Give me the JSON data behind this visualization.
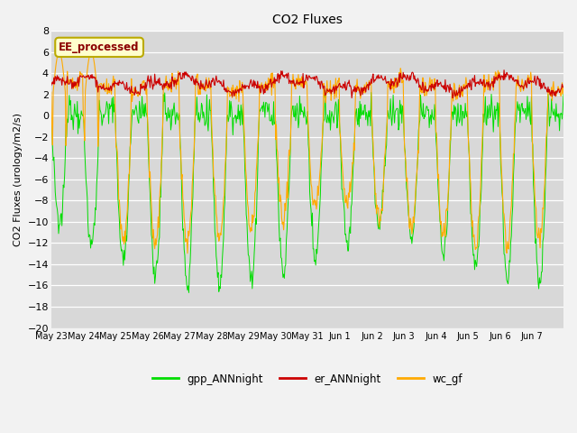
{
  "title": "CO2 Fluxes",
  "ylabel": "CO2 Fluxes (urology/m2/s)",
  "ylim": [
    -20,
    8
  ],
  "yticks": [
    -20,
    -18,
    -16,
    -14,
    -12,
    -10,
    -8,
    -6,
    -4,
    -2,
    0,
    2,
    4,
    6,
    8
  ],
  "bg_color": "#d8d8d8",
  "fig_bg": "#f2f2f2",
  "line_green": "#00dd00",
  "line_red": "#cc0000",
  "line_orange": "#ffaa00",
  "legend_label": "EE_processed",
  "legend_box_color": "#ffffcc",
  "legend_box_edge": "#bbaa00",
  "bottom_legend": [
    "gpp_ANNnight",
    "er_ANNnight",
    "wc_gf"
  ],
  "n_days": 16,
  "samples_per_day": 48
}
